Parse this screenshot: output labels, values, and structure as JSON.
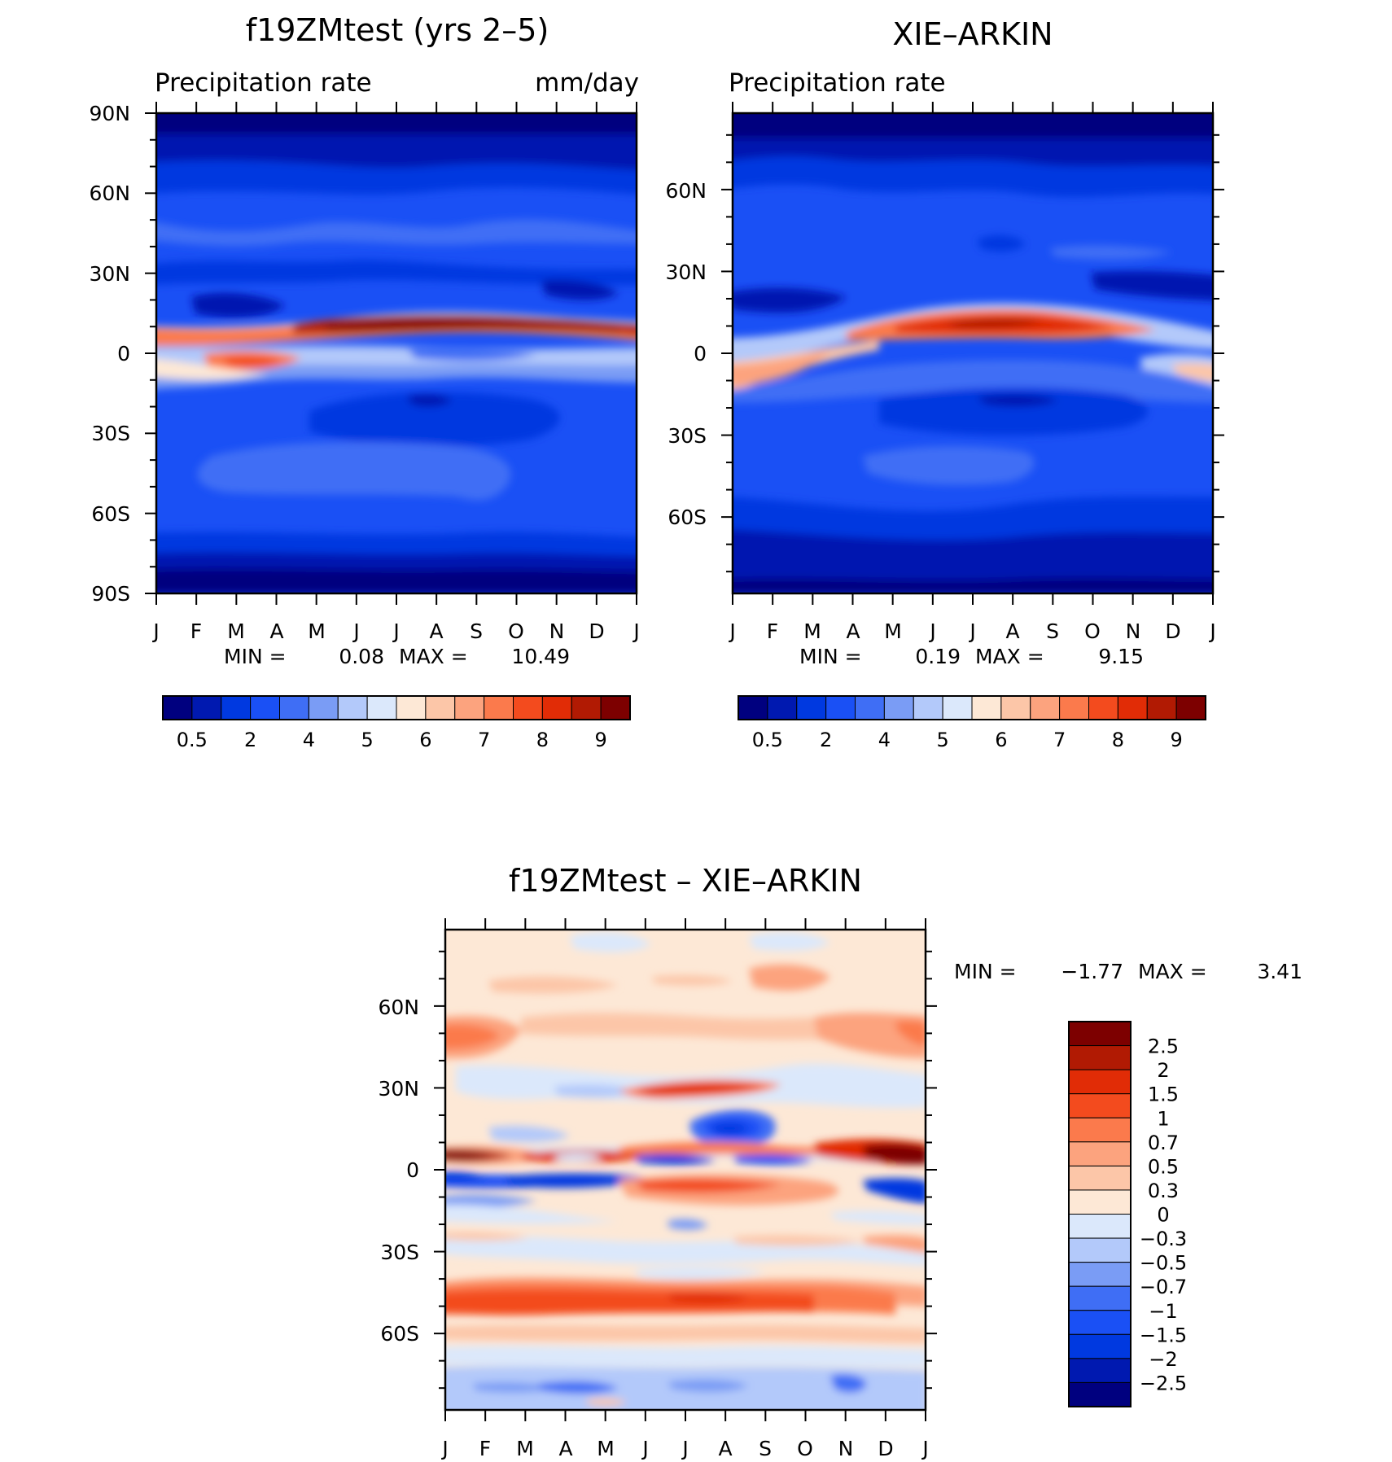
{
  "chart_data": [
    {
      "type": "heatmap",
      "panel": "model",
      "title": "f19ZMtest (yrs 2–5)",
      "left_subtitle": "Precipitation rate",
      "right_subtitle": "mm/day",
      "x_ticks": [
        "J",
        "F",
        "M",
        "A",
        "M",
        "J",
        "J",
        "A",
        "S",
        "O",
        "N",
        "D",
        "J"
      ],
      "y_tick_labels": [
        "90N",
        "60N",
        "30N",
        "0",
        "30S",
        "60S",
        "90S"
      ],
      "y_tick_values": [
        90,
        60,
        30,
        0,
        -30,
        -60,
        -90
      ],
      "ylim": [
        -90,
        90
      ],
      "min_label": "MIN =",
      "min_value": "0.08",
      "max_label": "MAX =",
      "max_value": "10.49",
      "colorbar_labels": [
        "0.5",
        "2",
        "4",
        "5",
        "6",
        "7",
        "8",
        "9"
      ],
      "colorbar_colors": [
        "#00007f",
        "#0019b0",
        "#0039e0",
        "#1a50f5",
        "#3f6ef5",
        "#7a9cf5",
        "#b3c9fa",
        "#dbe8fb",
        "#fde8d6",
        "#fcc6a8",
        "#fca37e",
        "#fb7a4c",
        "#f34b1e",
        "#e12c06",
        "#b11a03",
        "#7d0000"
      ],
      "band_peak_latitude": [
        5,
        5,
        6,
        7,
        8,
        9,
        10,
        10,
        9,
        8,
        7,
        6,
        5
      ],
      "band_peak_value": [
        7.5,
        7.2,
        7.4,
        8.0,
        8.8,
        9.6,
        10.3,
        10.49,
        10.0,
        9.5,
        9.0,
        8.2,
        7.5
      ]
    },
    {
      "type": "heatmap",
      "panel": "observation",
      "title": "XIE–ARKIN",
      "left_subtitle": "Precipitation rate",
      "x_ticks": [
        "J",
        "F",
        "M",
        "A",
        "M",
        "J",
        "J",
        "A",
        "S",
        "O",
        "N",
        "D",
        "J"
      ],
      "y_tick_labels": [
        "60N",
        "30N",
        "0",
        "30S",
        "60S"
      ],
      "y_tick_values": [
        60,
        30,
        0,
        -30,
        -60
      ],
      "ylim": [
        -88,
        88
      ],
      "min_label": "MIN =",
      "min_value": "0.19",
      "max_label": "MAX =",
      "max_value": "9.15",
      "colorbar_labels": [
        "0.5",
        "2",
        "4",
        "5",
        "6",
        "7",
        "8",
        "9"
      ],
      "colorbar_colors": [
        "#00007f",
        "#0019b0",
        "#0039e0",
        "#1a50f5",
        "#3f6ef5",
        "#7a9cf5",
        "#b3c9fa",
        "#dbe8fb",
        "#fde8d6",
        "#fcc6a8",
        "#fca37e",
        "#fb7a4c",
        "#f34b1e",
        "#e12c06",
        "#b11a03",
        "#7d0000"
      ],
      "band_peak_latitude": [
        -5,
        -5,
        -3,
        2,
        6,
        8,
        9,
        9,
        8,
        6,
        3,
        -2,
        -5
      ],
      "band_peak_value": [
        6.0,
        6.0,
        6.2,
        7.0,
        8.2,
        8.8,
        9.1,
        9.15,
        8.9,
        8.2,
        7.0,
        6.2,
        6.0
      ]
    },
    {
      "type": "heatmap",
      "panel": "difference",
      "title": "f19ZMtest – XIE–ARKIN",
      "x_ticks": [
        "J",
        "F",
        "M",
        "A",
        "M",
        "J",
        "J",
        "A",
        "S",
        "O",
        "N",
        "D",
        "J"
      ],
      "y_tick_labels": [
        "60N",
        "30N",
        "0",
        "30S",
        "60S"
      ],
      "y_tick_values": [
        60,
        30,
        0,
        -30,
        -60
      ],
      "ylim": [
        -88,
        88
      ],
      "min_label": "MIN =",
      "min_value": "−1.77",
      "max_label": "MAX =",
      "max_value": "3.41",
      "colorbar_labels": [
        "2.5",
        "2",
        "1.5",
        "1",
        "0.7",
        "0.5",
        "0.3",
        "0",
        "−0.3",
        "−0.5",
        "−0.7",
        "−1",
        "−1.5",
        "−2",
        "−2.5"
      ],
      "colorbar_colors": [
        "#7d0000",
        "#b11a03",
        "#e12c06",
        "#f34b1e",
        "#fb7a4c",
        "#fca37e",
        "#fcc6a8",
        "#fde8d6",
        "#dbe8fb",
        "#b3c9fa",
        "#7a9cf5",
        "#3f6ef5",
        "#1a50f5",
        "#0039e0",
        "#0019b0",
        "#00007f"
      ]
    }
  ]
}
